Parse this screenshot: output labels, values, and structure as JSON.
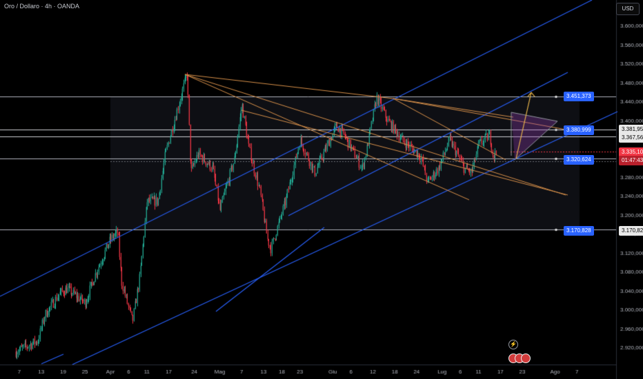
{
  "header": {
    "title": "Oro / Dollaro · 4h · OANDA",
    "currency": "USD"
  },
  "alert_icon": "⚡",
  "chart_data": {
    "type": "candlestick",
    "title": "Oro / Dollaro · 4h · OANDA",
    "ylim": [
      2900,
      3640
    ],
    "y_ticks": [
      "3.600,000",
      "3.560,000",
      "3.520,000",
      "3.480,000",
      "3.440,000",
      "3.400,000",
      "3.360,000",
      "3.320,000",
      "3.280,000",
      "3.240,000",
      "3.200,000",
      "3.160,000",
      "3.120,000",
      "3.080,000",
      "3.040,000",
      "3.000,000",
      "2.960,000",
      "2.920,000"
    ],
    "y_tick_values": [
      3600,
      3560,
      3520,
      3480,
      3440,
      3400,
      3360,
      3320,
      3280,
      3240,
      3200,
      3160,
      3120,
      3080,
      3040,
      3000,
      2960,
      2920
    ],
    "x_ticks": [
      "7",
      "13",
      "19",
      "25",
      "Apr",
      "6",
      "11",
      "17",
      "24",
      "Mag",
      "7",
      "13",
      "18",
      "23",
      "Giu",
      "6",
      "12",
      "18",
      "24",
      "Lug",
      "6",
      "11",
      "17",
      "23",
      "Ago",
      "7"
    ],
    "price_path": [
      [
        "2025-03-06",
        2912
      ],
      [
        "2025-03-12",
        2935
      ],
      [
        "2025-03-14",
        2990
      ],
      [
        "2025-03-18",
        3035
      ],
      [
        "2025-03-20",
        3045
      ],
      [
        "2025-03-25",
        3015
      ],
      [
        "2025-03-28",
        3080
      ],
      [
        "2025-04-01",
        3150
      ],
      [
        "2025-04-03",
        3165
      ],
      [
        "2025-04-04",
        3060
      ],
      [
        "2025-04-07",
        2975
      ],
      [
        "2025-04-09",
        3070
      ],
      [
        "2025-04-11",
        3230
      ],
      [
        "2025-04-14",
        3230
      ],
      [
        "2025-04-16",
        3330
      ],
      [
        "2025-04-22",
        3500
      ],
      [
        "2025-04-23",
        3290
      ],
      [
        "2025-04-25",
        3330
      ],
      [
        "2025-04-29",
        3300
      ],
      [
        "2025-05-01",
        3210
      ],
      [
        "2025-05-02",
        3240
      ],
      [
        "2025-05-05",
        3320
      ],
      [
        "2025-05-07",
        3435
      ],
      [
        "2025-05-09",
        3340
      ],
      [
        "2025-05-12",
        3250
      ],
      [
        "2025-05-14",
        3150
      ],
      [
        "2025-05-15",
        3130
      ],
      [
        "2025-05-19",
        3230
      ],
      [
        "2025-05-23",
        3360
      ],
      [
        "2025-05-27",
        3290
      ],
      [
        "2025-06-02",
        3390
      ],
      [
        "2025-06-04",
        3370
      ],
      [
        "2025-06-09",
        3300
      ],
      [
        "2025-06-10",
        3330
      ],
      [
        "2025-06-13",
        3450
      ],
      [
        "2025-06-16",
        3400
      ],
      [
        "2025-06-20",
        3360
      ],
      [
        "2025-06-25",
        3325
      ],
      [
        "2025-06-27",
        3270
      ],
      [
        "2025-06-30",
        3300
      ],
      [
        "2025-07-03",
        3360
      ],
      [
        "2025-07-07",
        3300
      ],
      [
        "2025-07-09",
        3290
      ],
      [
        "2025-07-11",
        3350
      ],
      [
        "2025-07-14",
        3370
      ],
      [
        "2025-07-15",
        3325
      ],
      [
        "2025-07-16",
        3335
      ]
    ],
    "horizontal_levels": [
      {
        "value": 3451.373,
        "label": "3.451,373"
      },
      {
        "value": 3380.999,
        "label": "3.380,999"
      },
      {
        "value": 3320.624,
        "label": "3.320,624"
      },
      {
        "value": 3170.828,
        "label": "3.170,828"
      }
    ],
    "right_axis_labels": [
      {
        "value": 3381.95,
        "label": "3.381,950",
        "style": "white"
      },
      {
        "value": 3367.564,
        "label": "3.367,564",
        "style": "white"
      },
      {
        "value": 3335.1,
        "label": "3.335,100",
        "style": "red"
      },
      {
        "value": 3170.828,
        "label": "3.170,828",
        "style": "white"
      }
    ],
    "countdown": "01:47:43",
    "projection": [
      [
        "2025-07-17",
        3320
      ],
      [
        "2025-07-20",
        3460
      ]
    ],
    "colors": {
      "up": "#22ab94",
      "down": "#f23645",
      "channel": "#2962ff",
      "fan": "#d9914a",
      "level": "#b2b5be",
      "label_blue": "#2962ff",
      "bg": "#000000"
    },
    "grid": false
  }
}
